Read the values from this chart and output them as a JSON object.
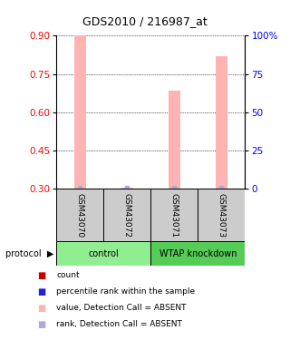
{
  "title": "GDS2010 / 216987_at",
  "samples": [
    "GSM43070",
    "GSM43072",
    "GSM43071",
    "GSM43073"
  ],
  "bar_values": [
    0.9,
    0.305,
    0.685,
    0.82
  ],
  "bar_color": "#ffb3b3",
  "rank_dot_color": "#aaaadd",
  "ylim_left": [
    0.3,
    0.9
  ],
  "ylim_right": [
    0,
    100
  ],
  "yticks_left": [
    0.3,
    0.45,
    0.6,
    0.75,
    0.9
  ],
  "yticks_right": [
    0,
    25,
    50,
    75,
    100
  ],
  "ytick_labels_right": [
    "0",
    "25",
    "50",
    "75",
    "100%"
  ],
  "groups": [
    {
      "label": "control",
      "color": "#90ee90"
    },
    {
      "label": "WTAP knockdown",
      "color": "#55cc55"
    }
  ],
  "legend_items": [
    {
      "color": "#cc0000",
      "label": "count"
    },
    {
      "color": "#2222cc",
      "label": "percentile rank within the sample"
    },
    {
      "color": "#ffb3b3",
      "label": "value, Detection Call = ABSENT"
    },
    {
      "color": "#aaaadd",
      "label": "rank, Detection Call = ABSENT"
    }
  ],
  "bar_width": 0.25
}
